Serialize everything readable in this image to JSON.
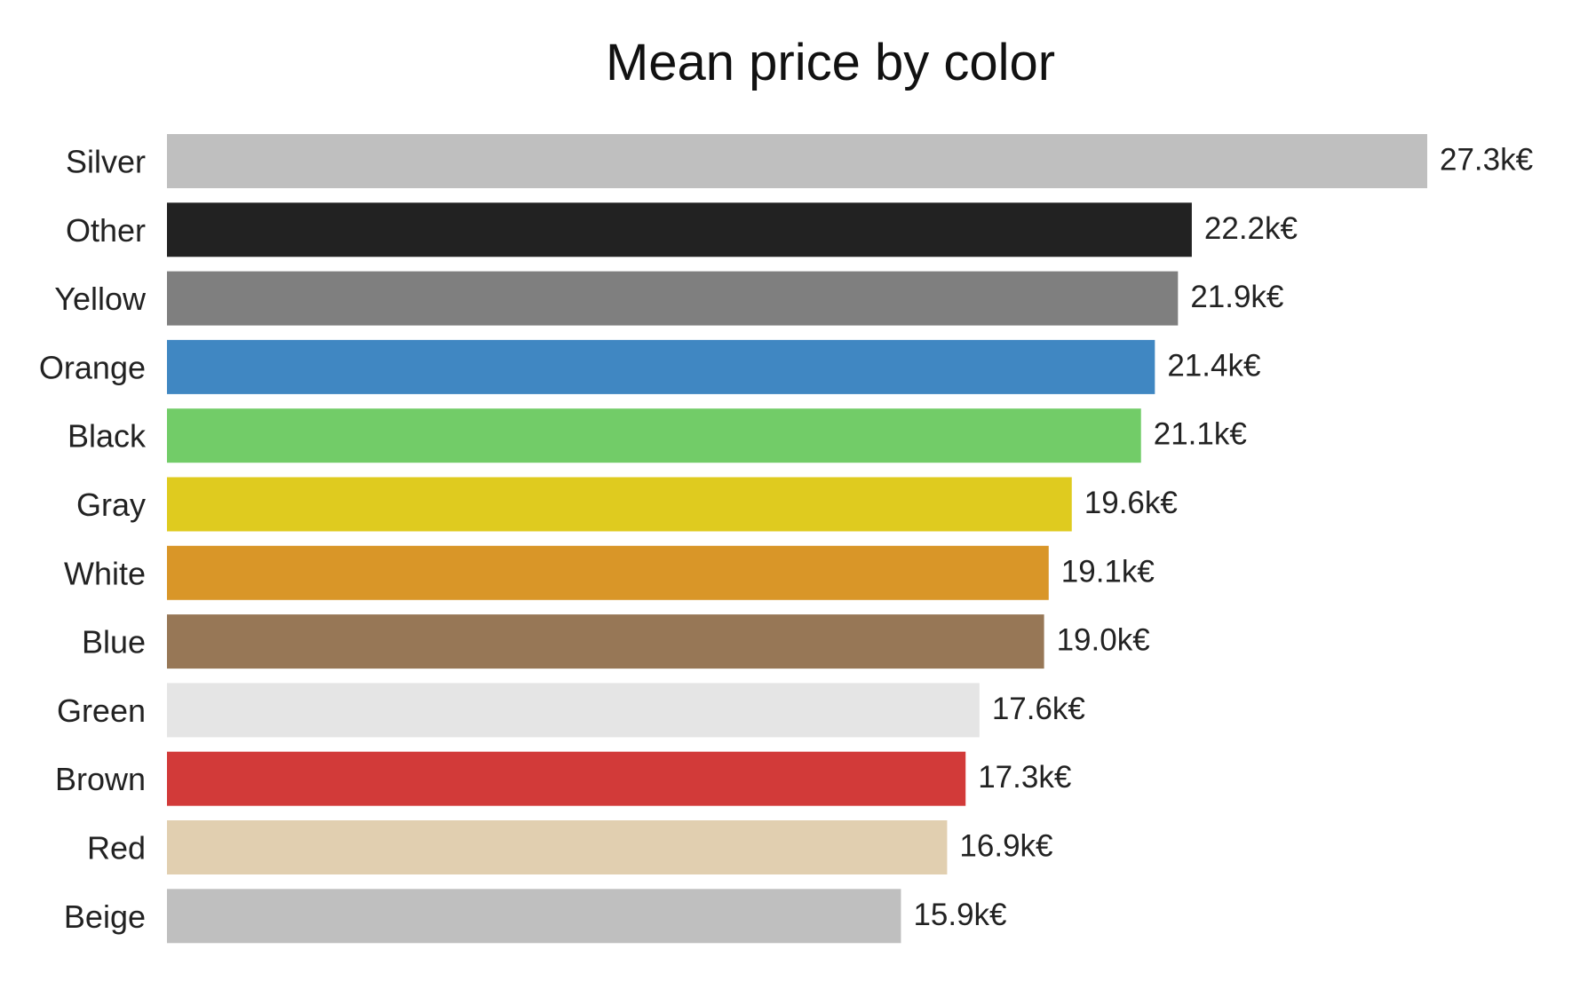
{
  "chart_data": {
    "type": "bar",
    "orientation": "horizontal",
    "title": "Mean price by color",
    "xlabel": "",
    "ylabel": "",
    "unit_suffix": "k€",
    "grid": false,
    "legend": "none",
    "xlim": [
      0,
      27.3
    ],
    "categories": [
      "Silver",
      "Other",
      "Yellow",
      "Orange",
      "Black",
      "Gray",
      "White",
      "Blue",
      "Green",
      "Brown",
      "Red",
      "Beige"
    ],
    "values": [
      27.3,
      22.2,
      21.9,
      21.4,
      21.1,
      19.6,
      19.1,
      19.0,
      17.6,
      17.3,
      16.9,
      15.9
    ],
    "value_labels": [
      "27.3k€",
      "22.2k€",
      "21.9k€",
      "21.4k€",
      "21.1k€",
      "19.6k€",
      "19.1k€",
      "19.0k€",
      "17.6k€",
      "17.3k€",
      "16.9k€",
      "15.9k€"
    ],
    "colors": [
      "#bfbfbf",
      "#222222",
      "#7f7f7f",
      "#4087c2",
      "#72cc68",
      "#dfcb1f",
      "#d99628",
      "#977756",
      "#e5e5e5",
      "#d23a39",
      "#e1cfb0",
      "#bfbfbf"
    ]
  }
}
